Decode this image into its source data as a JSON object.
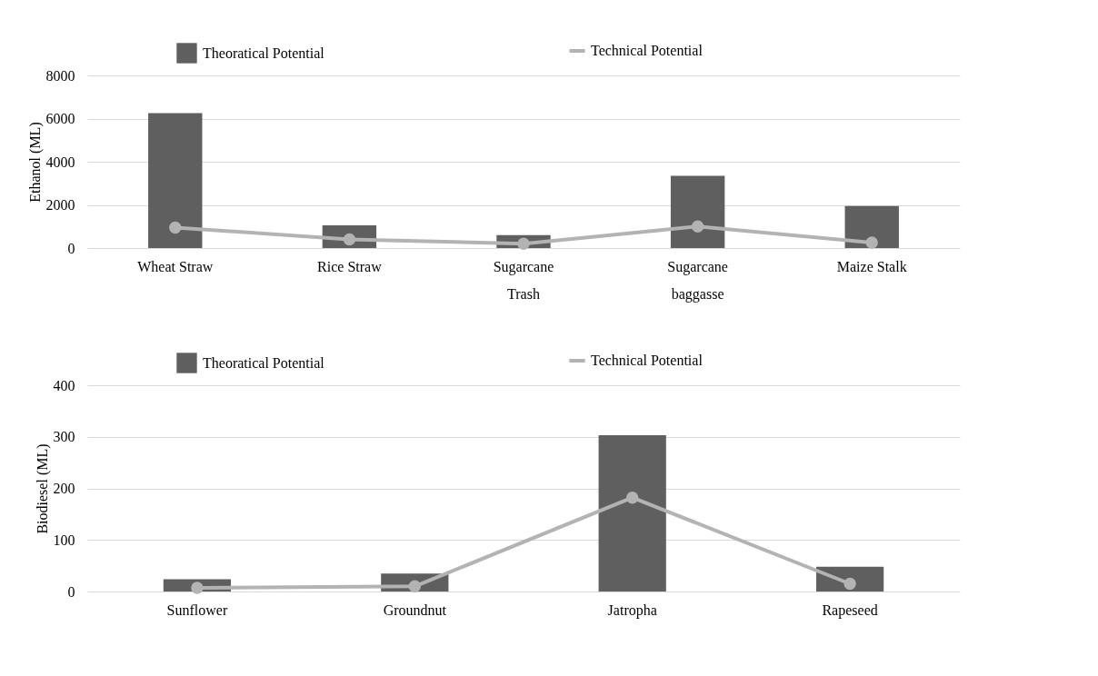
{
  "chart_data": [
    {
      "type": "bar",
      "ylabel": "Ethanol (ML)",
      "categories": [
        "Wheat Straw",
        "Rice Straw",
        "Sugarcane Trash",
        "Sugarcane baggasse",
        "Maize Stalk"
      ],
      "series": [
        {
          "name": "Theoratical Potential",
          "color": "#5f5f5f",
          "values": [
            6250,
            1050,
            600,
            3350,
            1950
          ]
        },
        {
          "name": "Technical Potential",
          "type": "line",
          "color": "#b3b3b3",
          "values": [
            950,
            400,
            200,
            1000,
            250
          ]
        }
      ],
      "ylim": [
        0,
        8000
      ],
      "yticks": [
        0,
        2000,
        4000,
        6000,
        8000
      ],
      "grid": "y",
      "legend": "top",
      "marker": "circle",
      "line_style": "solid"
    },
    {
      "type": "bar",
      "ylabel": "Biodiesel (ML)",
      "categories": [
        "Sunflower",
        "Groundnut",
        "Jatropha",
        "Rapeseed"
      ],
      "series": [
        {
          "name": "Theoratical Potential",
          "color": "#5f5f5f",
          "values": [
            24,
            35,
            303,
            48
          ]
        },
        {
          "name": "Technical Potential",
          "type": "line",
          "color": "#b3b3b3",
          "values": [
            7,
            10,
            182,
            15
          ]
        }
      ],
      "ylim": [
        0,
        400
      ],
      "yticks": [
        0,
        100,
        200,
        300,
        400
      ],
      "grid": "y",
      "legend": "top",
      "marker": "circle",
      "line_style": "solid"
    }
  ]
}
